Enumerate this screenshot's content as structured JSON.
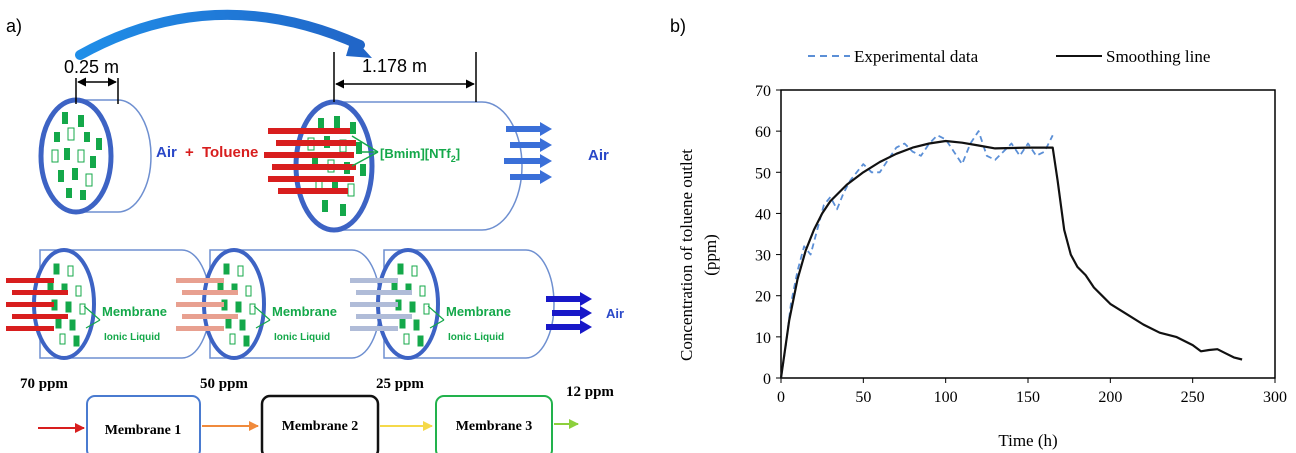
{
  "panel_a": {
    "label": "a)",
    "top": {
      "dim_small": "0.25 m",
      "dim_large": "1.178 m",
      "inlet_air": "Air",
      "inlet_plus": "+",
      "inlet_toluene": "Toluene",
      "il_label": "[Bmim][NTf",
      "il_sub": "2",
      "il_close": "]",
      "outlet": "Air"
    },
    "stages": [
      {
        "membrane": "Membrane",
        "ionic": "Ionic Liquid",
        "ppm": "70 ppm",
        "box": "Membrane 1",
        "arrow_color": "#d81e1e",
        "box_color": "#4a7bd0"
      },
      {
        "membrane": "Membrane",
        "ionic": "Ionic Liquid",
        "ppm": "50 ppm",
        "box": "Membrane 2",
        "arrow_color": "#e8a090",
        "box_color": "#111111"
      },
      {
        "membrane": "Membrane",
        "ionic": "Ionic Liquid",
        "ppm": "25 ppm",
        "box": "Membrane 3",
        "arrow_color": "#b0bcd8",
        "box_color": "#22b24c"
      }
    ],
    "final_ppm": "12 ppm",
    "final_outlet": "Air",
    "flow_colors": [
      "#d81e1e",
      "#f08a3c",
      "#f5d94a",
      "#8cd03c"
    ]
  },
  "panel_b": {
    "label": "b)",
    "chart_data": {
      "type": "line",
      "xlabel": "Time (h)",
      "ylabel_line1": "Concentration  of toluene outlet",
      "ylabel_line2": "(ppm)",
      "xlim": [
        0,
        300
      ],
      "ylim": [
        0,
        70
      ],
      "xticks": [
        "0",
        "50",
        "100",
        "150",
        "200",
        "250",
        "300"
      ],
      "yticks": [
        "0",
        "10",
        "20",
        "30",
        "40",
        "50",
        "60",
        "70"
      ],
      "grid": false,
      "legend_position": "top",
      "series": [
        {
          "name": "Experimental data",
          "style": "dashed",
          "color": "#5b8fd6",
          "x": [
            0,
            3,
            6,
            10,
            14,
            18,
            22,
            26,
            30,
            34,
            38,
            42,
            46,
            50,
            55,
            60,
            65,
            70,
            75,
            80,
            85,
            90,
            95,
            100,
            105,
            110,
            115,
            120,
            125,
            130,
            135,
            140,
            145,
            150,
            155,
            160,
            165
          ],
          "y": [
            0,
            8,
            18,
            26,
            32,
            30,
            36,
            42,
            44,
            41,
            45,
            48,
            50,
            52,
            50,
            50,
            53,
            56,
            57,
            55,
            54,
            57,
            59,
            58,
            55,
            52,
            57,
            60,
            54,
            53,
            55,
            57,
            54,
            57,
            54,
            55,
            59
          ]
        },
        {
          "name": "Smoothing line",
          "style": "solid",
          "color": "#111111",
          "x": [
            0,
            5,
            10,
            15,
            20,
            25,
            30,
            40,
            50,
            60,
            70,
            80,
            90,
            100,
            110,
            120,
            130,
            140,
            150,
            160,
            165,
            168,
            172,
            176,
            180,
            185,
            190,
            195,
            200,
            210,
            220,
            230,
            240,
            250,
            255,
            260,
            265,
            270,
            275,
            280
          ],
          "y": [
            0,
            14,
            24,
            31,
            36,
            40,
            43,
            47,
            50,
            52.5,
            54.5,
            56,
            57,
            57.6,
            57.2,
            56.5,
            55.8,
            55.9,
            56,
            56,
            56,
            48,
            36,
            30,
            27,
            25,
            22,
            20,
            18,
            15.5,
            13,
            11,
            10,
            8,
            6.5,
            6.8,
            7,
            6,
            5,
            4.5
          ]
        }
      ]
    }
  }
}
